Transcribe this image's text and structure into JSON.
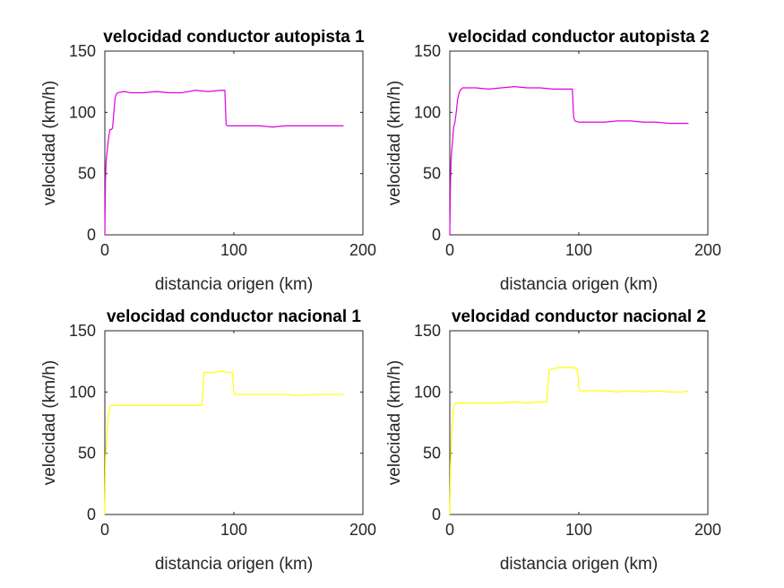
{
  "chart_data": [
    {
      "type": "line",
      "title": "velocidad conductor autopista 1",
      "xlabel": "distancia origen (km)",
      "ylabel": "velocidad (km/h)",
      "xlim": [
        0,
        200
      ],
      "ylim": [
        0,
        150
      ],
      "xticks": [
        "0",
        "100",
        "200"
      ],
      "yticks": [
        "0",
        "50",
        "100",
        "150"
      ],
      "grid": false,
      "color": "#e000e0",
      "series": [
        {
          "x": [
            0,
            0.5,
            1,
            2,
            3,
            4,
            5,
            6,
            7,
            8,
            9,
            10,
            15,
            20,
            30,
            40,
            50,
            60,
            70,
            80,
            90,
            93,
            94,
            95,
            100,
            110,
            120,
            130,
            140,
            150,
            160,
            170,
            180,
            185
          ],
          "y": [
            0,
            45,
            60,
            70,
            80,
            86,
            86,
            87,
            100,
            112,
            115,
            116,
            117,
            116,
            116,
            117,
            116,
            116,
            118,
            117,
            118,
            118,
            90,
            89,
            89,
            89,
            89,
            88,
            89,
            89,
            89,
            89,
            89,
            89
          ]
        }
      ]
    },
    {
      "type": "line",
      "title": "velocidad conductor autopista 2",
      "xlabel": "distancia origen (km)",
      "ylabel": "velocidad (km/h)",
      "xlim": [
        0,
        200
      ],
      "ylim": [
        0,
        150
      ],
      "xticks": [
        "0",
        "100",
        "200"
      ],
      "yticks": [
        "0",
        "50",
        "100",
        "150"
      ],
      "grid": false,
      "color": "#e000e0",
      "series": [
        {
          "x": [
            0,
            0.5,
            1,
            2,
            3,
            4,
            5,
            6,
            7,
            8,
            9,
            10,
            15,
            20,
            30,
            40,
            50,
            60,
            70,
            80,
            90,
            95,
            96,
            97,
            100,
            110,
            120,
            130,
            140,
            150,
            160,
            170,
            180,
            185
          ],
          "y": [
            0,
            40,
            62,
            75,
            88,
            92,
            100,
            110,
            115,
            118,
            119,
            120,
            120,
            120,
            119,
            120,
            121,
            120,
            120,
            119,
            119,
            119,
            96,
            93,
            92,
            92,
            92,
            93,
            93,
            92,
            92,
            91,
            91,
            91
          ]
        }
      ]
    },
    {
      "type": "line",
      "title": "velocidad conductor nacional 1",
      "xlabel": "distancia origen (km)",
      "ylabel": "velocidad (km/h)",
      "xlim": [
        0,
        200
      ],
      "ylim": [
        0,
        150
      ],
      "xticks": [
        "0",
        "100",
        "200"
      ],
      "yticks": [
        "0",
        "50",
        "100",
        "150"
      ],
      "grid": false,
      "color": "#ffff00",
      "series": [
        {
          "x": [
            0,
            0.5,
            1,
            2,
            3,
            4,
            5,
            10,
            20,
            30,
            40,
            50,
            60,
            70,
            75,
            76,
            77,
            80,
            85,
            90,
            95,
            99,
            100,
            101,
            110,
            120,
            130,
            140,
            150,
            160,
            170,
            180,
            185
          ],
          "y": [
            0,
            47,
            55,
            70,
            83,
            88,
            89,
            89,
            89,
            89,
            89,
            89,
            89,
            89,
            89,
            100,
            116,
            116,
            116,
            117,
            116,
            116,
            100,
            98,
            98,
            98,
            98,
            98,
            97,
            98,
            98,
            98,
            98
          ]
        }
      ]
    },
    {
      "type": "line",
      "title": "velocidad conductor nacional 2",
      "xlabel": "distancia origen (km)",
      "ylabel": "velocidad (km/h)",
      "xlim": [
        0,
        200
      ],
      "ylim": [
        0,
        150
      ],
      "xticks": [
        "0",
        "100",
        "200"
      ],
      "yticks": [
        "0",
        "50",
        "100",
        "150"
      ],
      "grid": false,
      "color": "#ffff00",
      "series": [
        {
          "x": [
            0,
            0.5,
            1,
            2,
            3,
            4,
            5,
            10,
            20,
            30,
            40,
            50,
            60,
            70,
            75,
            76,
            77,
            80,
            85,
            90,
            95,
            99,
            100,
            101,
            110,
            120,
            130,
            140,
            150,
            160,
            170,
            180,
            185
          ],
          "y": [
            0,
            40,
            55,
            75,
            88,
            90,
            91,
            91,
            91,
            91,
            91,
            92,
            91,
            92,
            92,
            105,
            118,
            119,
            120,
            120,
            120,
            119,
            104,
            101,
            101,
            101,
            100,
            101,
            100,
            101,
            100,
            100,
            101
          ]
        }
      ]
    }
  ]
}
